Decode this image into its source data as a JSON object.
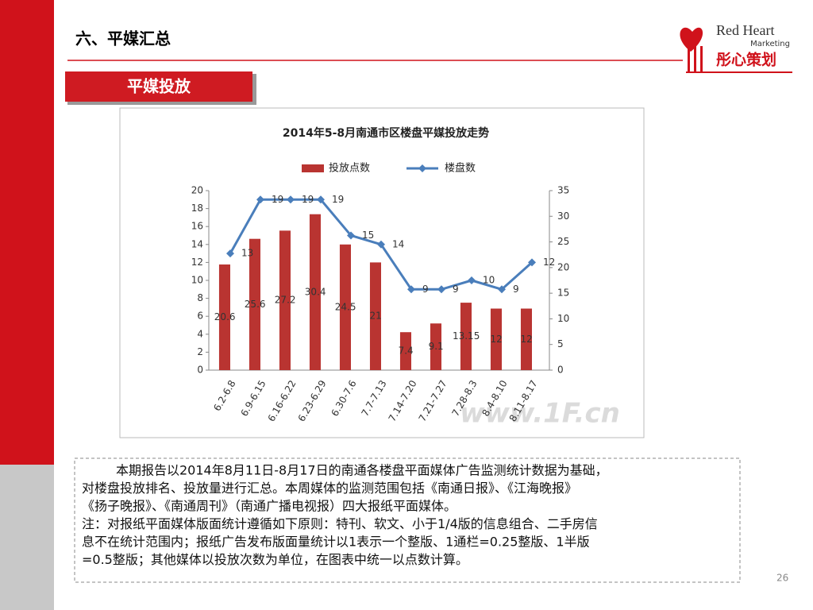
{
  "header": {
    "title": "六、平媒汇总",
    "section": "平媒投放"
  },
  "logo": {
    "name": "Red Heart",
    "sub": "Marketing",
    "cn": "彤心策划"
  },
  "chart_data": {
    "type": "bar-line",
    "title": "2014年5-8月南通市区楼盘平媒投放走势",
    "categories": [
      "6.2-6.8",
      "6.9-6.15",
      "6.16-6.22",
      "6.23-6.29",
      "6.30-7.6",
      "7.7-7.13",
      "7.14-7.20",
      "7.21-7.27",
      "7.28-8.3",
      "8.4-8.10",
      "8.11-8.17"
    ],
    "series": [
      {
        "name": "投放点数",
        "type": "bar",
        "axis": "y2",
        "color": "#b93431",
        "values": [
          20.6,
          25.6,
          27.2,
          30.4,
          24.5,
          21,
          7.4,
          9.1,
          13.15,
          12,
          12
        ]
      },
      {
        "name": "楼盘数",
        "type": "line",
        "color": "#4a7ebb",
        "values": [
          13,
          19,
          19,
          19,
          15,
          14,
          9,
          9,
          10,
          9,
          12
        ]
      }
    ],
    "ylim": [
      0,
      20
    ],
    "yticks": [
      0,
      2,
      4,
      6,
      8,
      10,
      12,
      14,
      16,
      18,
      20
    ],
    "y2lim": [
      0,
      35
    ],
    "y2ticks": [
      0,
      5,
      10,
      15,
      20,
      25,
      30,
      35
    ],
    "legend": "top",
    "watermark": "www.1F.cn"
  },
  "notes": {
    "lines": [
      "本期报告以2014年8月11日-8月17日的南通各楼盘平面媒体广告监测统计数据为基础，",
      "对楼盘投放排名、投放量进行汇总。本周媒体的监测范围包括《南通日报》、《江海晚报》",
      "《扬子晚报》、《南通周刊》（南通广播电视报）四大报纸平面媒体。",
      "注：对报纸平面媒体版面统计遵循如下原则：特刊、软文、小于1/4版的信息组合、二手房信",
      "息不在统计范围内；报纸广告发布版面量统计以1表示一个整版、1通栏=0.25整版、1半版",
      "=0.5整版；其他媒体以投放次数为单位，在图表中统一以点数计算。"
    ]
  },
  "page_number": "26"
}
